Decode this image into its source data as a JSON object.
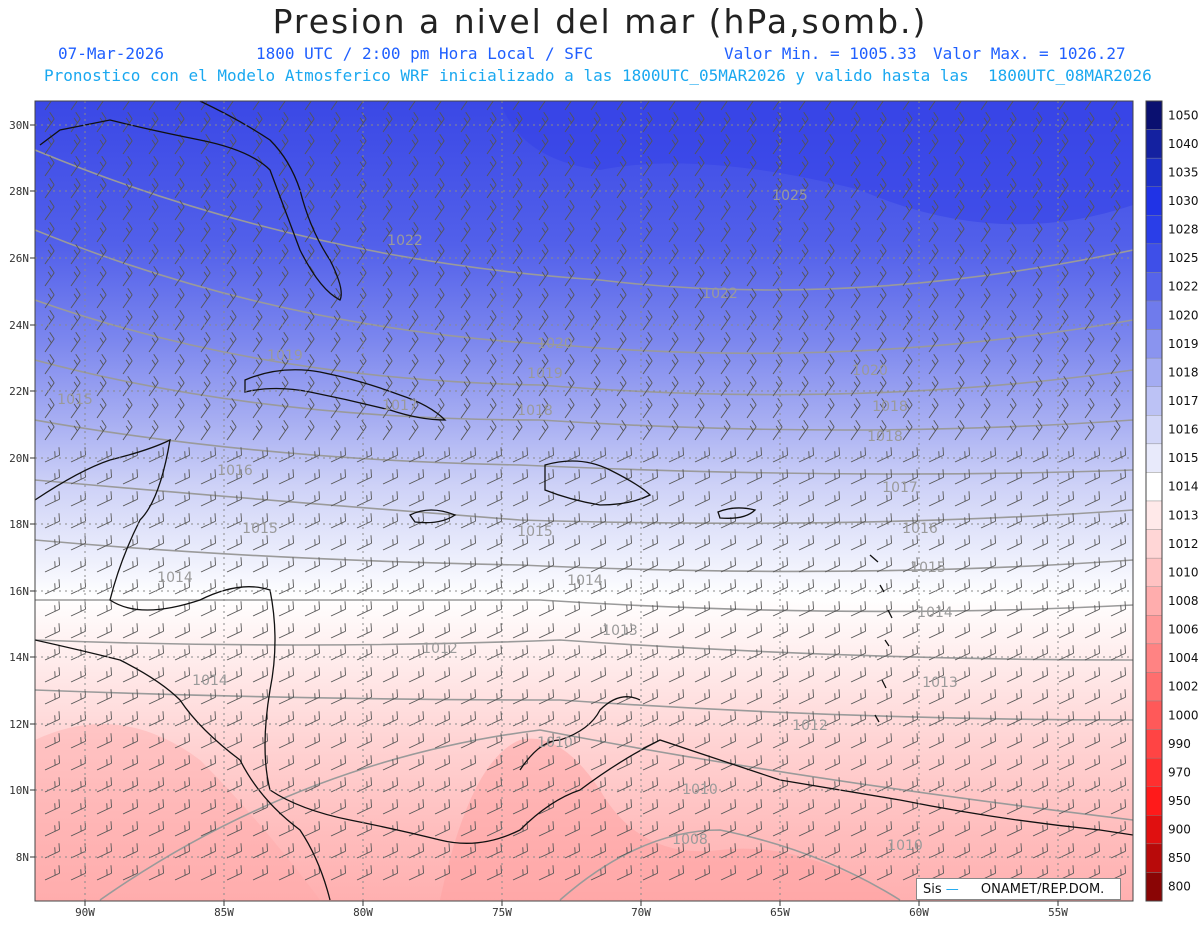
{
  "header": {
    "title": "Presion a nivel del mar (hPa,somb.)",
    "date": "07-Mar-2026",
    "time": "1800 UTC / 2:00 pm Hora Local / SFC",
    "min_label": "Valor Min. = 1005.33",
    "max_label": "Valor Max. = 1026.27",
    "model_line": "Pronostico con el Modelo Atmosferico WRF inicializado a las 1800UTC_05MAR2026 y valido hasta las  1800UTC_08MAR2026"
  },
  "axes": {
    "lat_labels": [
      "30N",
      "28N",
      "26N",
      "24N",
      "22N",
      "20N",
      "18N",
      "16N",
      "14N",
      "12N",
      "10N",
      "8N"
    ],
    "lon_labels": [
      "90W",
      "85W",
      "80W",
      "75W",
      "70W",
      "65W",
      "60W",
      "55W"
    ]
  },
  "colorbar": {
    "labels": [
      "1050",
      "1040",
      "1035",
      "1030",
      "1028",
      "1025",
      "1022",
      "1020",
      "1019",
      "1018",
      "1017",
      "1016",
      "1015",
      "1014",
      "1013",
      "1012",
      "1010",
      "1008",
      "1006",
      "1004",
      "1002",
      "1000",
      "990",
      "970",
      "950",
      "900",
      "850",
      "800"
    ],
    "colors": [
      "#0a1070",
      "#1421a0",
      "#1c2fc8",
      "#2033e6",
      "#2a3ee8",
      "#3e4fe8",
      "#5563ea",
      "#6f7bec",
      "#8a94ef",
      "#a4acf2",
      "#bcc2f5",
      "#d3d7f8",
      "#e8eafb",
      "#ffffff",
      "#ffe9e9",
      "#ffd6d6",
      "#ffc2c2",
      "#ffadad",
      "#ff9898",
      "#ff8383",
      "#ff6e6e",
      "#ff5959",
      "#ff4444",
      "#ff2f2f",
      "#ff1a1a",
      "#e01010",
      "#b80a0a",
      "#8a0505"
    ]
  },
  "isobar_labels": [
    {
      "text": "1025"
    },
    {
      "text": "1022"
    },
    {
      "text": "1022"
    },
    {
      "text": "1020"
    },
    {
      "text": "1020"
    },
    {
      "text": "1019"
    },
    {
      "text": "1019"
    },
    {
      "text": "1018"
    },
    {
      "text": "1018"
    },
    {
      "text": "1018"
    },
    {
      "text": "1017"
    },
    {
      "text": "1017"
    },
    {
      "text": "1016"
    },
    {
      "text": "1016"
    },
    {
      "text": "1015"
    },
    {
      "text": "1015"
    },
    {
      "text": "1015"
    },
    {
      "text": "1015"
    },
    {
      "text": "1014"
    },
    {
      "text": "1014"
    },
    {
      "text": "1014"
    },
    {
      "text": "1014"
    },
    {
      "text": "1013"
    },
    {
      "text": "1013"
    },
    {
      "text": "1012"
    },
    {
      "text": "1012"
    },
    {
      "text": "1010"
    },
    {
      "text": "1010"
    },
    {
      "text": "1010"
    },
    {
      "text": "1008"
    }
  ],
  "credit": {
    "prefix": "Sis",
    "suffix": "ONAMET/REP.DOM."
  }
}
